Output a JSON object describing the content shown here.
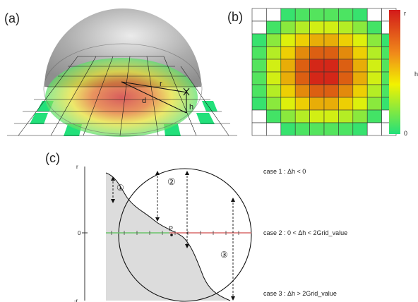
{
  "panels": {
    "a": {
      "label": "(a)",
      "r_symbol": "r",
      "d_symbol": "d",
      "h_symbol": "h"
    },
    "b": {
      "label": "(b)",
      "colorbar_top": "r",
      "colorbar_bottom": "0",
      "colorbar_side": "h"
    },
    "c": {
      "label": "(c)",
      "axis_top": "r",
      "axis_zero": "0",
      "axis_bottom": "-r",
      "point_label": "P",
      "marker_1": "①",
      "marker_2": "②",
      "marker_3": "③"
    }
  },
  "cases": [
    {
      "text": "case 1 : Δh  < 0"
    },
    {
      "text": "case  2 : 0 < Δh  < 2Grid_value"
    },
    {
      "text": "case 3 :  Δh > 2Grid_value"
    }
  ],
  "colors": {
    "low": "#22e07a",
    "mid": "#f2f200",
    "high": "#d21a1a",
    "dome": "#9a9a9a",
    "terrain": "#dcdcdc"
  },
  "heatmap": {
    "rows": [
      [
        null,
        null,
        0.05,
        0.1,
        0.12,
        0.12,
        0.1,
        0.05,
        null,
        null
      ],
      [
        null,
        0.08,
        0.25,
        0.35,
        0.42,
        0.42,
        0.35,
        0.25,
        0.08,
        null
      ],
      [
        0.05,
        0.25,
        0.45,
        0.58,
        0.66,
        0.66,
        0.58,
        0.45,
        0.25,
        0.05
      ],
      [
        0.1,
        0.35,
        0.58,
        0.74,
        0.84,
        0.84,
        0.74,
        0.58,
        0.35,
        0.1
      ],
      [
        0.12,
        0.42,
        0.66,
        0.84,
        0.97,
        0.97,
        0.84,
        0.66,
        0.42,
        0.12
      ],
      [
        0.12,
        0.42,
        0.66,
        0.84,
        0.97,
        0.97,
        0.84,
        0.66,
        0.42,
        0.12
      ],
      [
        0.1,
        0.35,
        0.58,
        0.74,
        0.84,
        0.84,
        0.74,
        0.58,
        0.35,
        0.1
      ],
      [
        0.05,
        0.25,
        0.45,
        0.58,
        0.66,
        0.66,
        0.58,
        0.45,
        0.25,
        0.05
      ],
      [
        null,
        0.08,
        0.25,
        0.35,
        0.42,
        0.42,
        0.35,
        0.25,
        0.08,
        null
      ],
      [
        null,
        null,
        0.05,
        0.1,
        0.12,
        0.12,
        0.1,
        0.05,
        null,
        null
      ]
    ]
  }
}
